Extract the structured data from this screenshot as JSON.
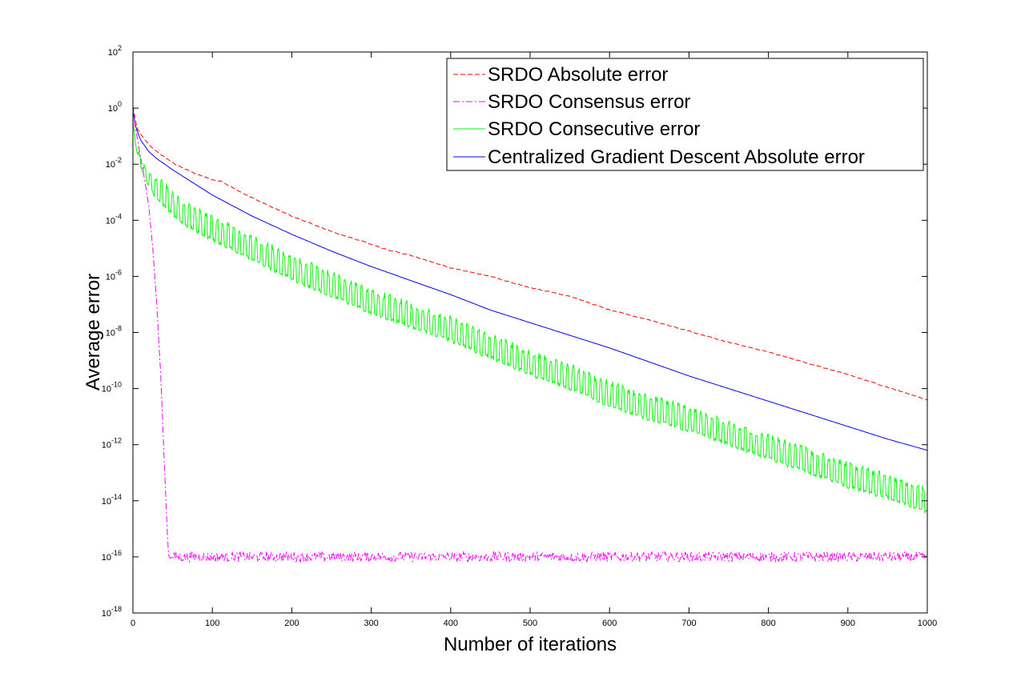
{
  "chart_data": {
    "type": "line",
    "title": "",
    "xlabel": "Number of iterations",
    "ylabel": "Average error",
    "xlim": [
      0,
      1000
    ],
    "ylim_log10": [
      -18,
      2
    ],
    "yscale": "log",
    "x_ticks": [
      0,
      100,
      200,
      300,
      400,
      500,
      600,
      700,
      800,
      900,
      1000
    ],
    "y_tick_exponents": [
      2,
      0,
      -2,
      -4,
      -6,
      -8,
      -10,
      -12,
      -14,
      -16,
      -18
    ],
    "y_tick_base": "10",
    "grid": false,
    "legend_position": "top-right",
    "series": [
      {
        "name": "SRDO Absolute error",
        "color": "#ff0000",
        "dash": "dashed",
        "x": [
          0,
          5,
          10,
          20,
          30,
          40,
          50,
          60,
          80,
          100,
          110,
          120,
          150,
          200,
          250,
          300,
          320,
          350,
          400,
          450,
          500,
          550,
          600,
          650,
          700,
          750,
          800,
          850,
          900,
          950,
          1000
        ],
        "log10_y": [
          0.05,
          -0.7,
          -0.95,
          -1.3,
          -1.55,
          -1.75,
          -1.95,
          -2.1,
          -2.35,
          -2.55,
          -2.6,
          -2.75,
          -3.2,
          -3.85,
          -4.4,
          -4.85,
          -5.05,
          -5.25,
          -5.7,
          -6.0,
          -6.4,
          -6.7,
          -7.2,
          -7.55,
          -7.95,
          -8.35,
          -8.7,
          -9.1,
          -9.5,
          -9.95,
          -10.4
        ]
      },
      {
        "name": "SRDO Consensus error",
        "color": "#ff00ff",
        "dash": "dashdot",
        "x": [
          0,
          2,
          5,
          10,
          15,
          20,
          25,
          30,
          35,
          40,
          43,
          45,
          47,
          50,
          55,
          60
        ],
        "log10_y": [
          0.0,
          -0.5,
          -1.0,
          -1.8,
          -2.6,
          -3.5,
          -5.0,
          -7.0,
          -9.5,
          -13.0,
          -15.0,
          -15.95,
          -16.05,
          -16.0,
          -15.95,
          -16.0
        ],
        "plateau_log10_y": -16.0,
        "plateau_from_x": 50
      },
      {
        "name": "SRDO Consecutive error",
        "color": "#00ff00",
        "dash": "solid",
        "x": [
          0,
          2,
          5,
          10,
          20,
          30,
          40,
          50,
          60,
          80,
          100,
          150,
          200,
          250,
          300,
          350,
          400,
          450,
          500,
          550,
          600,
          650,
          700,
          750,
          800,
          850,
          900,
          950,
          1000
        ],
        "log10_y": [
          -0.5,
          -1.0,
          -1.5,
          -2.0,
          -2.6,
          -3.0,
          -3.2,
          -3.5,
          -3.8,
          -4.1,
          -4.4,
          -5.1,
          -5.8,
          -6.4,
          -7.0,
          -7.5,
          -8.0,
          -8.6,
          -9.2,
          -9.7,
          -10.3,
          -10.8,
          -11.2,
          -11.7,
          -12.2,
          -12.7,
          -13.2,
          -13.6,
          -14.1
        ],
        "oscillation_log10_amplitude": 0.6
      },
      {
        "name": "Centralized Gradient Descent Absolute error",
        "color": "#0000ff",
        "dash": "solid",
        "x": [
          0,
          2,
          5,
          10,
          20,
          30,
          50,
          75,
          100,
          150,
          200,
          250,
          300,
          350,
          400,
          450,
          500,
          550,
          600,
          650,
          700,
          750,
          800,
          850,
          900,
          950,
          1000
        ],
        "log10_y": [
          0.0,
          -0.5,
          -0.8,
          -1.15,
          -1.55,
          -1.8,
          -2.2,
          -2.65,
          -3.1,
          -3.85,
          -4.5,
          -5.1,
          -5.65,
          -6.15,
          -6.65,
          -7.2,
          -7.65,
          -8.1,
          -8.55,
          -9.05,
          -9.55,
          -10.0,
          -10.45,
          -10.9,
          -11.35,
          -11.8,
          -12.2
        ]
      }
    ]
  }
}
